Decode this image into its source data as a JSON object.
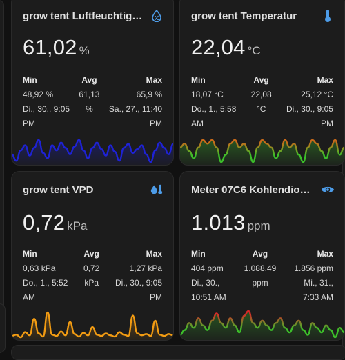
{
  "cards": [
    {
      "title": "grow tent Luftfeuchtig…",
      "icon": "water-percent-icon",
      "value": "61,02",
      "unit": "%",
      "min_label": "Min",
      "avg_label": "Avg",
      "max_label": "Max",
      "min": "48,92 %",
      "min_time_1": "Di., 30., 9:05",
      "min_time_2": "PM",
      "avg": "61,13",
      "avg_unit": "%",
      "max": "65,9 %",
      "max_time_1": "Sa., 27., 11:40",
      "max_time_2": "PM",
      "graph_color": "#1e22d6",
      "graph_values": [
        55,
        50,
        58,
        62,
        54,
        60,
        66,
        56,
        52,
        62,
        58,
        64,
        60,
        55,
        61,
        66,
        58,
        52,
        60,
        64,
        59,
        54,
        62,
        57,
        50,
        60,
        63,
        56,
        59,
        62,
        55,
        49,
        58,
        64,
        60,
        55,
        63
      ]
    },
    {
      "title": "grow tent Temperatur",
      "icon": "thermometer-icon",
      "value": "22,04",
      "unit": "°C",
      "min_label": "Min",
      "avg_label": "Avg",
      "max_label": "Max",
      "min": "18,07 °C",
      "min_time_1": "Do., 1., 5:58",
      "min_time_2": "AM",
      "avg": "22,08",
      "avg_unit": "°C",
      "max": "25,12 °C",
      "max_time_1": "Di., 30., 9:05",
      "max_time_2": "PM",
      "graph_color": "#3cbf2a",
      "graph_color_hot": "#c96a1a",
      "graph_values": [
        22,
        23,
        21,
        19,
        22,
        24,
        23,
        24,
        22,
        18,
        20,
        23,
        24,
        22,
        23,
        21,
        18,
        22,
        24,
        23,
        22,
        19,
        21,
        24,
        22,
        23,
        20,
        18,
        22,
        24,
        23,
        21,
        19,
        22,
        24,
        20,
        22
      ]
    },
    {
      "title": "grow tent VPD",
      "icon": "water-thermometer-icon",
      "value": "0,72",
      "unit": "kPa",
      "min_label": "Min",
      "avg_label": "Avg",
      "max_label": "Max",
      "min": "0,63 kPa",
      "min_time_1": "Do., 1., 5:52",
      "min_time_2": "AM",
      "avg": "0,72",
      "avg_unit": "kPa",
      "max": "1,27 kPa",
      "max_time_1": "Di., 30., 9:05",
      "max_time_2": "PM",
      "graph_color": "#f39c12",
      "graph_values": [
        0.68,
        0.7,
        0.66,
        0.74,
        0.69,
        0.95,
        0.72,
        0.67,
        1.05,
        0.7,
        0.68,
        0.75,
        0.69,
        0.9,
        0.71,
        0.67,
        0.73,
        0.69,
        0.82,
        0.7,
        0.68,
        0.72,
        0.69,
        0.67,
        0.74,
        0.7,
        0.68,
        1.0,
        0.72,
        0.69,
        0.71,
        0.68,
        0.92,
        0.7,
        0.68,
        0.71,
        0.69
      ]
    },
    {
      "title": "Meter 07C6 Kohlendio…",
      "icon": "eye-icon",
      "value": "1.013",
      "unit": "ppm",
      "min_label": "Min",
      "avg_label": "Avg",
      "max_label": "Max",
      "min": "404 ppm",
      "min_time_1": "Di., 30.,",
      "min_time_2": "10:51 AM",
      "avg": "1.088,49",
      "avg_unit": "ppm",
      "max": "1.856 ppm",
      "max_time_1": "Mi., 31.,",
      "max_time_2": "7:33 AM",
      "graph_color": "#3cbf2a",
      "graph_color_hot": "#d62828",
      "graph_values": [
        800,
        1000,
        1300,
        1100,
        1500,
        1200,
        1000,
        1400,
        1700,
        1300,
        1100,
        1500,
        1200,
        900,
        1600,
        1800,
        1300,
        1100,
        1400,
        1200,
        1000,
        1300,
        1500,
        1100,
        900,
        1200,
        1400,
        1000,
        800,
        1300,
        1100,
        900,
        1200,
        1000,
        700,
        1100,
        900
      ]
    }
  ]
}
